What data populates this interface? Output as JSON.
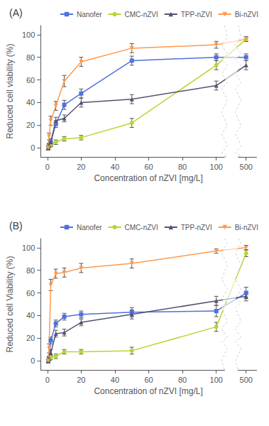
{
  "chart_data": [
    {
      "type": "line",
      "title": "(A)",
      "x_label": "Concentration of nZVI [mg/L]",
      "y_label": "Reduced cell viability (%)",
      "x": [
        0.5,
        1,
        2,
        5,
        10,
        20,
        50,
        100,
        500
      ],
      "xlim": [
        -4,
        506
      ],
      "xticks": [
        0,
        20,
        40,
        60,
        80,
        100,
        500
      ],
      "ylim": [
        -8,
        108
      ],
      "yticks": [
        0,
        20,
        40,
        60,
        80,
        100
      ],
      "grid": false,
      "legend": "top",
      "series": [
        {
          "name": "Nanofer",
          "marker": "square",
          "values": [
            0,
            2,
            5,
            21,
            38,
            48,
            77,
            80,
            80
          ],
          "errors": [
            1,
            2,
            3,
            3,
            4,
            4,
            4,
            3,
            3
          ]
        },
        {
          "name": "CMC-nZVI",
          "marker": "circle",
          "values": [
            0,
            1,
            3,
            5,
            8,
            9,
            22,
            73,
            96
          ],
          "errors": [
            1,
            1,
            2,
            2,
            2,
            2,
            4,
            4,
            2
          ]
        },
        {
          "name": "TPP-nZVI",
          "marker": "triangle-up",
          "values": [
            0,
            2,
            5,
            24,
            26,
            40,
            43,
            55,
            73
          ],
          "errors": [
            1,
            2,
            3,
            3,
            3,
            4,
            4,
            4,
            4
          ]
        },
        {
          "name": "Bi-nZVI",
          "marker": "triangle-down",
          "values": [
            0,
            10,
            24,
            37,
            59,
            76,
            88,
            91,
            96
          ],
          "errors": [
            2,
            3,
            4,
            4,
            5,
            4,
            4,
            3,
            2
          ]
        }
      ]
    },
    {
      "type": "line",
      "title": "(B)",
      "x_label": "Concentration of nZVI [mg/L]",
      "y_label": "Reduced cell Viability (%)",
      "x": [
        0.5,
        1,
        2,
        5,
        10,
        20,
        50,
        100,
        500
      ],
      "xlim": [
        -4,
        506
      ],
      "xticks": [
        0,
        20,
        40,
        60,
        80,
        100,
        500
      ],
      "ylim": [
        -8,
        108
      ],
      "yticks": [
        0,
        20,
        40,
        60,
        80,
        100
      ],
      "grid": false,
      "legend": "top",
      "series": [
        {
          "name": "Nanofer",
          "marker": "square",
          "values": [
            0,
            2,
            18,
            33,
            39,
            41,
            43,
            44,
            60
          ],
          "errors": [
            1,
            2,
            3,
            3,
            3,
            3,
            4,
            5,
            5
          ]
        },
        {
          "name": "CMC-nZVI",
          "marker": "circle",
          "values": [
            0,
            1,
            3,
            4,
            8,
            8,
            9,
            30,
            95
          ],
          "errors": [
            1,
            1,
            2,
            2,
            2,
            2,
            3,
            4,
            3
          ]
        },
        {
          "name": "TPP-nZVI",
          "marker": "triangle-up",
          "values": [
            0,
            2,
            7,
            24,
            25,
            34,
            41,
            53,
            57
          ],
          "errors": [
            1,
            2,
            3,
            3,
            3,
            3,
            4,
            4,
            4
          ]
        },
        {
          "name": "Bi-nZVI",
          "marker": "triangle-down",
          "values": [
            0,
            11,
            67,
            77,
            78,
            82,
            86,
            97,
            100
          ],
          "errors": [
            2,
            4,
            5,
            4,
            4,
            4,
            4,
            2,
            2
          ]
        }
      ]
    }
  ]
}
